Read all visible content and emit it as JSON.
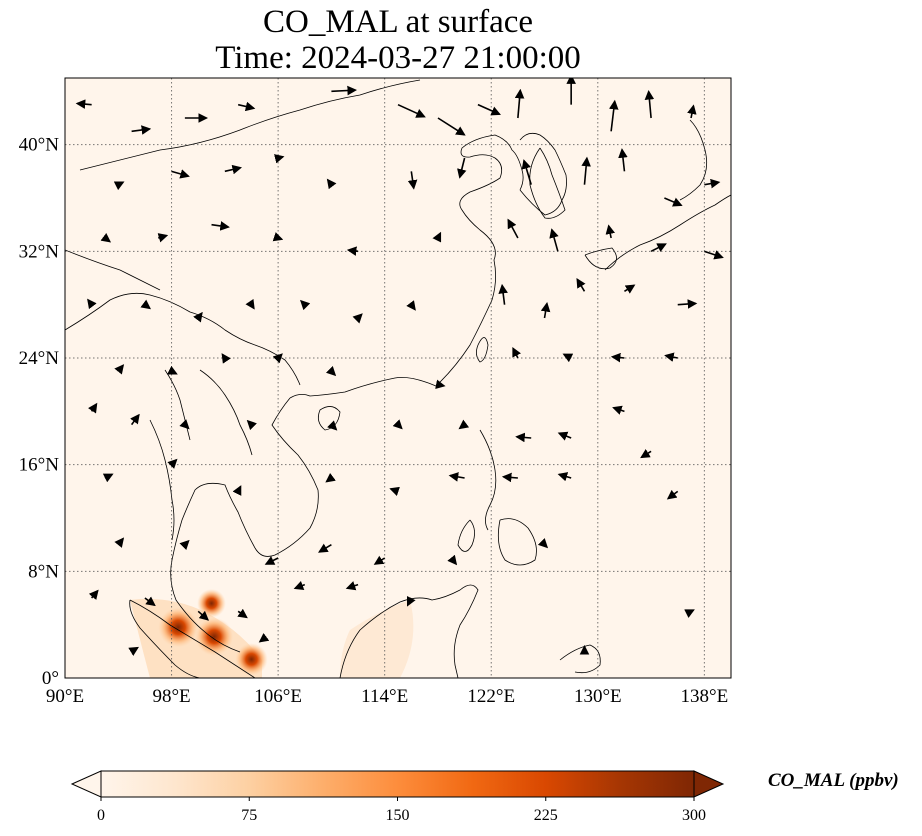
{
  "title": {
    "line1": "CO_MAL at surface",
    "line2": "Time: 2024-03-27 21:00:00"
  },
  "map": {
    "lon_range": [
      90,
      140
    ],
    "lat_range": [
      0,
      45
    ],
    "lon_ticks": [
      {
        "value": 90,
        "label": "90°E"
      },
      {
        "value": 98,
        "label": "98°E"
      },
      {
        "value": 106,
        "label": "106°E"
      },
      {
        "value": 114,
        "label": "114°E"
      },
      {
        "value": 122,
        "label": "122°E"
      },
      {
        "value": 130,
        "label": "130°E"
      },
      {
        "value": 138,
        "label": "138°E"
      }
    ],
    "lat_ticks": [
      {
        "value": 0,
        "label": "0°"
      },
      {
        "value": 8,
        "label": "8°N"
      },
      {
        "value": 16,
        "label": "16°N"
      },
      {
        "value": 24,
        "label": "24°N"
      },
      {
        "value": 32,
        "label": "32°N"
      },
      {
        "value": 40,
        "label": "40°N"
      }
    ],
    "gridlines": true,
    "background_color": "#fff5eb",
    "hotspots": [
      {
        "lon": 98.5,
        "lat": 3.8,
        "value": 300
      },
      {
        "lon": 101.2,
        "lat": 3.1,
        "value": 280
      },
      {
        "lon": 104.0,
        "lat": 1.4,
        "value": 220
      },
      {
        "lon": 101.0,
        "lat": 5.6,
        "value": 180
      }
    ],
    "wind_vectors": [
      {
        "lon": 92,
        "lat": 43,
        "u": -1.2,
        "v": 0.1
      },
      {
        "lon": 95,
        "lat": 41,
        "u": 1.5,
        "v": 0.2
      },
      {
        "lon": 99,
        "lat": 42,
        "u": 1.8,
        "v": 0.0
      },
      {
        "lon": 103,
        "lat": 43,
        "u": 1.3,
        "v": -0.3
      },
      {
        "lon": 110,
        "lat": 44,
        "u": 2.0,
        "v": 0.1
      },
      {
        "lon": 115,
        "lat": 43,
        "u": 2.2,
        "v": -1.0
      },
      {
        "lon": 118,
        "lat": 42,
        "u": 2.2,
        "v": -1.4
      },
      {
        "lon": 121,
        "lat": 43,
        "u": 1.8,
        "v": -0.8
      },
      {
        "lon": 124,
        "lat": 42,
        "u": 0.2,
        "v": 2.3
      },
      {
        "lon": 128,
        "lat": 43,
        "u": 0.0,
        "v": 2.4
      },
      {
        "lon": 131,
        "lat": 41,
        "u": 0.3,
        "v": 2.5
      },
      {
        "lon": 134,
        "lat": 42,
        "u": -0.2,
        "v": 2.2
      },
      {
        "lon": 137,
        "lat": 42,
        "u": 0.2,
        "v": 1.0
      },
      {
        "lon": 94,
        "lat": 37,
        "u": 0.4,
        "v": 0.2
      },
      {
        "lon": 98,
        "lat": 38,
        "u": 1.4,
        "v": -0.4
      },
      {
        "lon": 102,
        "lat": 38,
        "u": 1.3,
        "v": 0.3
      },
      {
        "lon": 106,
        "lat": 39,
        "u": 0.4,
        "v": 0.1
      },
      {
        "lon": 110,
        "lat": 37,
        "u": -0.3,
        "v": 0.4
      },
      {
        "lon": 116,
        "lat": 38,
        "u": 0.2,
        "v": -1.4
      },
      {
        "lon": 120,
        "lat": 39,
        "u": -0.4,
        "v": -1.6
      },
      {
        "lon": 125,
        "lat": 37,
        "u": -0.6,
        "v": 2.0
      },
      {
        "lon": 129,
        "lat": 37,
        "u": 0.2,
        "v": 2.2
      },
      {
        "lon": 132,
        "lat": 38,
        "u": -0.2,
        "v": 1.8
      },
      {
        "lon": 135,
        "lat": 36,
        "u": 1.4,
        "v": -0.6
      },
      {
        "lon": 138,
        "lat": 37,
        "u": 1.2,
        "v": 0.2
      },
      {
        "lon": 93,
        "lat": 33,
        "u": 0.4,
        "v": -0.3
      },
      {
        "lon": 97,
        "lat": 33,
        "u": 0.7,
        "v": 0.2
      },
      {
        "lon": 101,
        "lat": 34,
        "u": 1.4,
        "v": -0.2
      },
      {
        "lon": 106,
        "lat": 33,
        "u": 0.3,
        "v": -0.1
      },
      {
        "lon": 112,
        "lat": 32,
        "u": -0.8,
        "v": 0.1
      },
      {
        "lon": 118,
        "lat": 33,
        "u": 0.2,
        "v": 0.4
      },
      {
        "lon": 124,
        "lat": 33,
        "u": -0.8,
        "v": 1.5
      },
      {
        "lon": 127,
        "lat": 32,
        "u": -0.5,
        "v": 1.8
      },
      {
        "lon": 131,
        "lat": 33,
        "u": -0.2,
        "v": 1.0
      },
      {
        "lon": 134,
        "lat": 32,
        "u": 1.2,
        "v": 0.6
      },
      {
        "lon": 138,
        "lat": 32,
        "u": 1.5,
        "v": -0.5
      },
      {
        "lon": 92,
        "lat": 28,
        "u": -0.3,
        "v": 0.4
      },
      {
        "lon": 96,
        "lat": 28,
        "u": 0.4,
        "v": -0.3
      },
      {
        "lon": 100,
        "lat": 27,
        "u": 0.3,
        "v": 0.4
      },
      {
        "lon": 104,
        "lat": 28,
        "u": 0.2,
        "v": -0.3
      },
      {
        "lon": 108,
        "lat": 28,
        "u": -0.3,
        "v": 0.3
      },
      {
        "lon": 112,
        "lat": 27,
        "u": 0.3,
        "v": 0.3
      },
      {
        "lon": 116,
        "lat": 28,
        "u": 0.3,
        "v": -0.4
      },
      {
        "lon": 123,
        "lat": 28,
        "u": -0.2,
        "v": 1.6
      },
      {
        "lon": 126,
        "lat": 27,
        "u": 0.2,
        "v": 1.2
      },
      {
        "lon": 129,
        "lat": 29,
        "u": -0.6,
        "v": 1.0
      },
      {
        "lon": 132,
        "lat": 29,
        "u": 0.8,
        "v": 0.5
      },
      {
        "lon": 136,
        "lat": 28,
        "u": 1.5,
        "v": 0.1
      },
      {
        "lon": 94,
        "lat": 23,
        "u": 0.4,
        "v": 0.5
      },
      {
        "lon": 98,
        "lat": 23,
        "u": 0.4,
        "v": -0.2
      },
      {
        "lon": 102,
        "lat": 24,
        "u": -0.2,
        "v": 0.3
      },
      {
        "lon": 106,
        "lat": 24,
        "u": 0.3,
        "v": 0.3
      },
      {
        "lon": 110,
        "lat": 23,
        "u": 0.3,
        "v": -0.3
      },
      {
        "lon": 118,
        "lat": 22,
        "u": 0.5,
        "v": -0.1
      },
      {
        "lon": 124,
        "lat": 24,
        "u": -0.4,
        "v": 0.8
      },
      {
        "lon": 128,
        "lat": 24,
        "u": -0.6,
        "v": 0.3
      },
      {
        "lon": 132,
        "lat": 24,
        "u": -1.0,
        "v": 0.1
      },
      {
        "lon": 136,
        "lat": 24,
        "u": -1.0,
        "v": 0.2
      },
      {
        "lon": 92,
        "lat": 20,
        "u": 0.4,
        "v": 0.6
      },
      {
        "lon": 95,
        "lat": 19,
        "u": 0.6,
        "v": 0.8
      },
      {
        "lon": 99,
        "lat": 19,
        "u": 0.3,
        "v": -0.3
      },
      {
        "lon": 104,
        "lat": 19,
        "u": -0.3,
        "v": 0.3
      },
      {
        "lon": 110,
        "lat": 19,
        "u": 0.4,
        "v": -0.4
      },
      {
        "lon": 115,
        "lat": 19,
        "u": 0.3,
        "v": -0.3
      },
      {
        "lon": 120,
        "lat": 19,
        "u": -0.4,
        "v": -0.3
      },
      {
        "lon": 125,
        "lat": 18,
        "u": -1.2,
        "v": 0.1
      },
      {
        "lon": 128,
        "lat": 18,
        "u": -1.0,
        "v": 0.4
      },
      {
        "lon": 132,
        "lat": 20,
        "u": -0.9,
        "v": 0.3
      },
      {
        "lon": 134,
        "lat": 17,
        "u": -0.8,
        "v": -0.5
      },
      {
        "lon": 93,
        "lat": 15,
        "u": 0.6,
        "v": 0.3
      },
      {
        "lon": 98,
        "lat": 16,
        "u": 0.4,
        "v": 0.4
      },
      {
        "lon": 103,
        "lat": 14,
        "u": 0.2,
        "v": 0.4
      },
      {
        "lon": 110,
        "lat": 15,
        "u": -0.4,
        "v": -0.3
      },
      {
        "lon": 115,
        "lat": 14,
        "u": -0.6,
        "v": 0.2
      },
      {
        "lon": 120,
        "lat": 15,
        "u": -1.2,
        "v": 0.2
      },
      {
        "lon": 124,
        "lat": 15,
        "u": -1.2,
        "v": 0.1
      },
      {
        "lon": 128,
        "lat": 15,
        "u": -1.0,
        "v": 0.3
      },
      {
        "lon": 136,
        "lat": 14,
        "u": -0.8,
        "v": -0.6
      },
      {
        "lon": 94,
        "lat": 10,
        "u": 0.4,
        "v": 0.5
      },
      {
        "lon": 99,
        "lat": 10,
        "u": 0.3,
        "v": 0.3
      },
      {
        "lon": 106,
        "lat": 9,
        "u": -1.0,
        "v": -0.5
      },
      {
        "lon": 110,
        "lat": 10,
        "u": -1.0,
        "v": -0.6
      },
      {
        "lon": 114,
        "lat": 9,
        "u": -0.8,
        "v": -0.5
      },
      {
        "lon": 119,
        "lat": 9,
        "u": 0.4,
        "v": -0.5
      },
      {
        "lon": 126,
        "lat": 10,
        "u": 0.2,
        "v": -0.2
      },
      {
        "lon": 92,
        "lat": 6,
        "u": 0.5,
        "v": 0.6
      },
      {
        "lon": 96,
        "lat": 6,
        "u": 0.8,
        "v": -0.6
      },
      {
        "lon": 100,
        "lat": 5,
        "u": 0.8,
        "v": -0.7
      },
      {
        "lon": 103,
        "lat": 5,
        "u": 0.7,
        "v": -0.5
      },
      {
        "lon": 108,
        "lat": 7,
        "u": -0.8,
        "v": -0.3
      },
      {
        "lon": 112,
        "lat": 7,
        "u": -0.9,
        "v": -0.3
      },
      {
        "lon": 116,
        "lat": 6,
        "u": -0.3,
        "v": -0.6
      },
      {
        "lon": 95,
        "lat": 2,
        "u": 0.5,
        "v": 0.3
      },
      {
        "lon": 105,
        "lat": 3,
        "u": -0.4,
        "v": -0.3
      },
      {
        "lon": 129,
        "lat": 2,
        "u": 0.0,
        "v": 0.4
      },
      {
        "lon": 137,
        "lat": 5,
        "u": 0.2,
        "v": 0.1
      }
    ]
  },
  "colorbar": {
    "label": "CO_MAL (ppbv)",
    "min": 0,
    "max": 300,
    "ticks": [
      "0",
      "75",
      "150",
      "225",
      "300"
    ],
    "tick_values": [
      0,
      75,
      150,
      225,
      300
    ],
    "extend": "both",
    "colors": [
      "#fff5eb",
      "#fee6ce",
      "#fdd0a2",
      "#fdae6b",
      "#fd8d3c",
      "#f16913",
      "#d94801",
      "#a63603",
      "#7f2704"
    ]
  }
}
